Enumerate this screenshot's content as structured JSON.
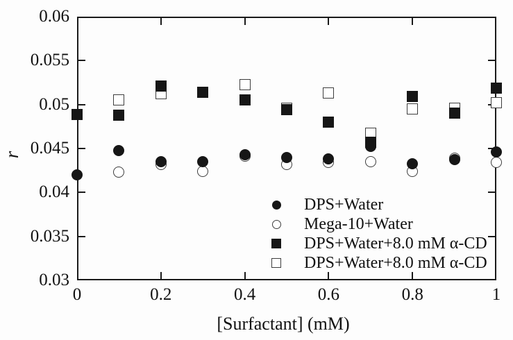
{
  "colors": {
    "background": "#fdfdfd",
    "frame": "#1a1a1a",
    "marker_fill": "#161616",
    "open_marker_stroke": "#3d3d3d"
  },
  "chart_data": {
    "type": "scatter",
    "title": "",
    "xlabel": "[Surfactant] (mM)",
    "ylabel": "r",
    "xlim": [
      0,
      1
    ],
    "ylim": [
      0.03,
      0.06
    ],
    "grid": false,
    "frame": "closed box with inward mirrored ticks",
    "legend_position": "inside lower-right",
    "x_tick_values": [
      0,
      0.2,
      0.4,
      0.6,
      0.8,
      1
    ],
    "x_tick_labels": [
      "0",
      "0.2",
      "0.4",
      "0.6",
      "0.8",
      "1"
    ],
    "y_tick_values": [
      0.03,
      0.035,
      0.04,
      0.045,
      0.05,
      0.055,
      0.06
    ],
    "y_tick_labels": [
      "0.03",
      "0.035",
      "0.04",
      "0.045",
      "0.05",
      "0.055",
      "0.06"
    ],
    "series": [
      {
        "name": "DPS+Water",
        "marker": "filled-circle",
        "points": [
          [
            0,
            0.042
          ],
          [
            0.1,
            0.0448
          ],
          [
            0.2,
            0.0435
          ],
          [
            0.3,
            0.0435
          ],
          [
            0.4,
            0.0443
          ],
          [
            0.5,
            0.044
          ],
          [
            0.6,
            0.0438
          ],
          [
            0.7,
            0.0452
          ],
          [
            0.8,
            0.0433
          ],
          [
            0.9,
            0.0437
          ],
          [
            1.0,
            0.0446
          ]
        ]
      },
      {
        "name": "Mega-10+Water",
        "marker": "open-circle",
        "points": [
          [
            0.1,
            0.0423
          ],
          [
            0.2,
            0.0432
          ],
          [
            0.3,
            0.0424
          ],
          [
            0.4,
            0.0441
          ],
          [
            0.5,
            0.0432
          ],
          [
            0.6,
            0.0434
          ],
          [
            0.7,
            0.0435
          ],
          [
            0.8,
            0.0424
          ],
          [
            0.9,
            0.0439
          ],
          [
            1.0,
            0.0434
          ]
        ]
      },
      {
        "name": "DPS+Water+8.0 mM α-CD",
        "marker": "filled-square",
        "points": [
          [
            0,
            0.0489
          ],
          [
            0.1,
            0.0488
          ],
          [
            0.2,
            0.0521
          ],
          [
            0.3,
            0.0514
          ],
          [
            0.4,
            0.0505
          ],
          [
            0.5,
            0.0494
          ],
          [
            0.6,
            0.048
          ],
          [
            0.7,
            0.0457
          ],
          [
            0.8,
            0.0509
          ],
          [
            0.9,
            0.049
          ],
          [
            1.0,
            0.0519
          ]
        ]
      },
      {
        "name": "DPS+Water+8.0 mM α-CD",
        "marker": "open-square",
        "points": [
          [
            0.1,
            0.0505
          ],
          [
            0.2,
            0.0512
          ],
          [
            0.4,
            0.0523
          ],
          [
            0.5,
            0.0496
          ],
          [
            0.6,
            0.0513
          ],
          [
            0.7,
            0.0467
          ],
          [
            0.8,
            0.0495
          ],
          [
            0.9,
            0.0496
          ],
          [
            1.0,
            0.0502
          ]
        ]
      }
    ]
  }
}
